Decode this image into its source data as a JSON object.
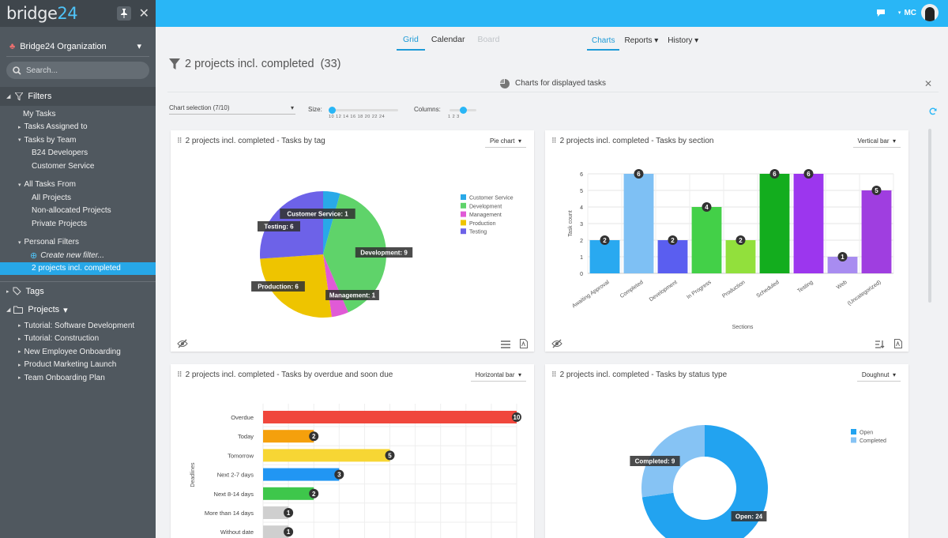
{
  "app": {
    "logo_main": "bridge",
    "logo_num": "24",
    "user_initials": "MC"
  },
  "sidebar": {
    "org": "Bridge24 Organization",
    "search_placeholder": "Search...",
    "filters_label": "Filters",
    "filter_items": [
      {
        "label": "My Tasks",
        "level": "l1"
      },
      {
        "label": "Tasks Assigned to",
        "level": "l1a",
        "arrow": "▸"
      },
      {
        "label": "Tasks by Team",
        "level": "l1a",
        "arrow": "▾"
      },
      {
        "label": "B24 Developers",
        "level": "l2"
      },
      {
        "label": "Customer Service",
        "level": "l2"
      },
      {
        "label": "All Tasks From",
        "level": "l1a",
        "arrow": "▾"
      },
      {
        "label": "All Projects",
        "level": "l2"
      },
      {
        "label": "Non-allocated Projects",
        "level": "l2"
      },
      {
        "label": "Private Projects",
        "level": "l2"
      },
      {
        "label": "Personal Filters",
        "level": "l1a",
        "arrow": "▾"
      },
      {
        "label": "Create new filter...",
        "level": "l2"
      },
      {
        "label": "2 projects incl. completed",
        "level": "l2",
        "selected": true
      }
    ],
    "tags_label": "Tags",
    "projects_label": "Projects",
    "projects": [
      "Tutorial: Software Development",
      "Tutorial: Construction",
      "New Employee Onboarding",
      "Product Marketing Launch",
      "Team Onboarding Plan"
    ]
  },
  "views": {
    "grid": "Grid",
    "calendar": "Calendar",
    "board": "Board",
    "charts": "Charts",
    "reports": "Reports",
    "history": "History"
  },
  "header": {
    "title": "2 projects incl. completed",
    "count": "(33)",
    "charts_bar": "Charts for displayed tasks"
  },
  "controls": {
    "chart_selection": "Chart selection (7/10)",
    "size_label": "Size:",
    "size_ticks": "10 12 14 16 18 20 22 24",
    "columns_label": "Columns:",
    "column_ticks": "1   2   3"
  },
  "colors": {
    "accent": "#29b6f6",
    "sidebar": "#50585f",
    "selected": "#27a7e7"
  },
  "chart_data": [
    {
      "type": "pie",
      "title": "2 projects incl. completed - Tasks by tag",
      "selector": "Pie chart",
      "legend": [
        "Customer Service",
        "Development",
        "Management",
        "Production",
        "Testing"
      ],
      "values": [
        1,
        9,
        1,
        6,
        6
      ],
      "colors": [
        "#29a9e8",
        "#5fd36a",
        "#e05ad6",
        "#eec400",
        "#6d62e8"
      ],
      "labels": [
        "Customer Service: 1",
        "Development: 9",
        "Management: 1",
        "Production: 6",
        "Testing: 6"
      ]
    },
    {
      "type": "bar",
      "title": "2 projects incl. completed - Tasks by section",
      "selector": "Vertical bar",
      "categories": [
        "Awaiting Approval",
        "Completed",
        "Development",
        "In Progress",
        "Production",
        "Scheduled",
        "Testing",
        "Web",
        "(Uncategorized)"
      ],
      "values": [
        2,
        6,
        2,
        4,
        2,
        6,
        6,
        1,
        5
      ],
      "colors": [
        "#29a9f0",
        "#7ec0f4",
        "#5a5ef0",
        "#43d048",
        "#92e03c",
        "#13ad1e",
        "#9c36ee",
        "#a88cf0",
        "#9f3ee0"
      ],
      "ylabel": "Task count",
      "xlabel": "Sections",
      "ylim": [
        0,
        6
      ],
      "yticks": [
        0,
        1,
        2,
        3,
        4,
        5,
        6
      ]
    },
    {
      "type": "bar",
      "orientation": "horizontal",
      "title": "2 projects incl. completed - Tasks by overdue and soon due",
      "selector": "Horizontal bar",
      "categories": [
        "Overdue",
        "Today",
        "Tomorrow",
        "Next 2-7 days",
        "Next 8-14 days",
        "More than 14 days",
        "Without date"
      ],
      "values": [
        10,
        2,
        5,
        3,
        2,
        1,
        1
      ],
      "colors": [
        "#f0473c",
        "#f5a00c",
        "#f7d634",
        "#2196f3",
        "#3ec74b",
        "#cfcfcf",
        "#cfcfcf"
      ],
      "ylabel": "Deadlines",
      "xlim": [
        0,
        10
      ]
    },
    {
      "type": "pie",
      "variant": "doughnut",
      "title": "2 projects incl. completed - Tasks by status type",
      "selector": "Doughnut",
      "legend": [
        "Open",
        "Completed"
      ],
      "values": [
        24,
        9
      ],
      "colors": [
        "#22a3f0",
        "#86c3f4"
      ],
      "labels": [
        "Open: 24",
        "Completed: 9"
      ]
    }
  ]
}
